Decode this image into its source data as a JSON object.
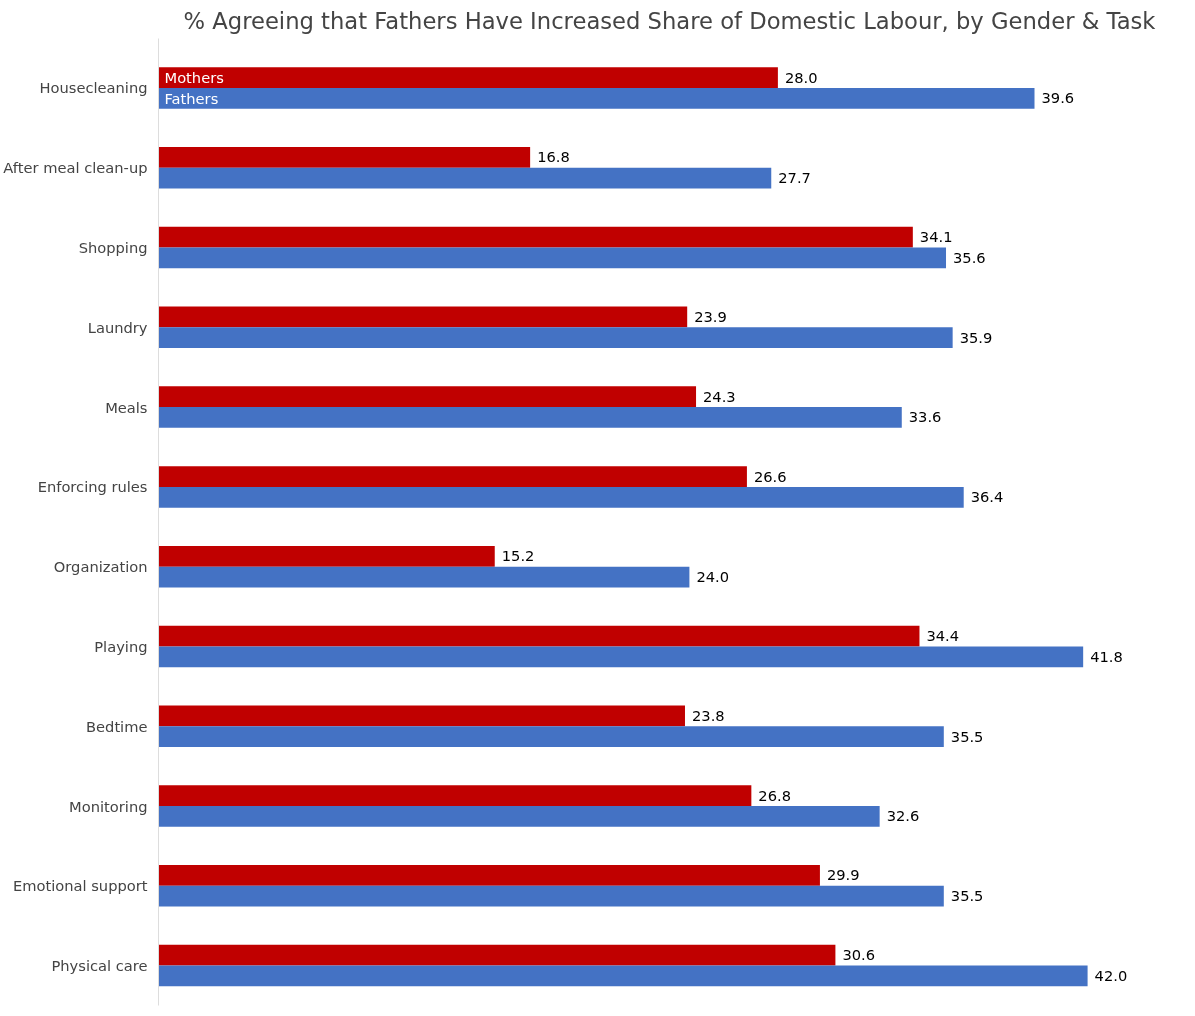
{
  "chart_data": {
    "type": "bar",
    "orientation": "horizontal",
    "title": "% Agreeing that Fathers Have Increased Share of Domestic Labour, by Gender & Task",
    "categories": [
      "Housecleaning",
      "After meal clean-up",
      "Shopping",
      "Laundry",
      "Meals",
      "Enforcing rules",
      "Organization",
      "Playing",
      "Bedtime",
      "Monitoring",
      "Emotional support",
      "Physical care"
    ],
    "series": [
      {
        "name": "Mothers",
        "color": "#c00000",
        "values": [
          28.0,
          16.8,
          34.1,
          23.9,
          24.3,
          26.6,
          15.2,
          34.4,
          23.8,
          26.8,
          29.9,
          30.6
        ],
        "value_labels": [
          "28.0",
          "16.8",
          "34.1",
          "23.9",
          "24.3",
          "26.6",
          "15.2",
          "34.4",
          "23.8",
          "26.8",
          "29.9",
          "30.6"
        ]
      },
      {
        "name": "Fathers",
        "color": "#4472c4",
        "values": [
          39.6,
          27.7,
          35.6,
          35.9,
          33.6,
          36.4,
          24.0,
          41.8,
          35.5,
          32.6,
          35.5,
          42.0
        ],
        "value_labels": [
          "39.6",
          "27.7",
          "35.6",
          "35.9",
          "33.6",
          "36.4",
          "24.0",
          "41.8",
          "35.5",
          "32.6",
          "35.5",
          "42.0"
        ]
      }
    ],
    "tick_labels": "y",
    "grid": false,
    "legend": false
  }
}
